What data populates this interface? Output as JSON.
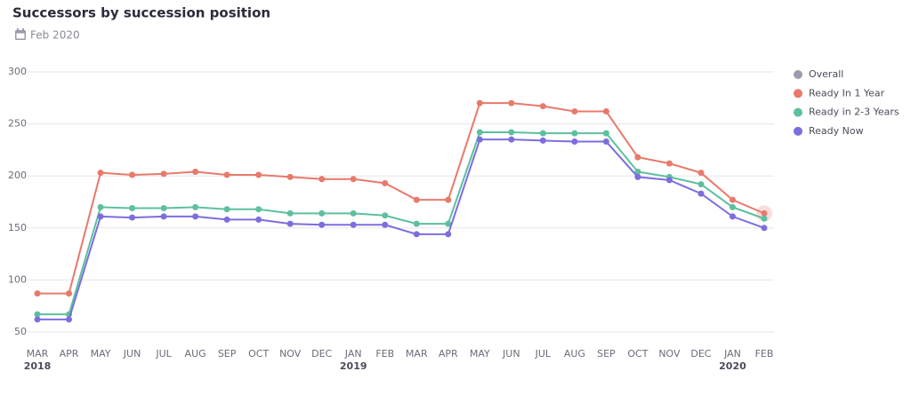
{
  "chart_data": {
    "type": "line",
    "title": "Successors by succession position",
    "subtitle": "Feb 2020",
    "categories": [
      "MAR",
      "APR",
      "MAY",
      "JUN",
      "JUL",
      "AUG",
      "SEP",
      "OCT",
      "NOV",
      "DEC",
      "JAN",
      "FEB",
      "MAR",
      "APR",
      "MAY",
      "JUN",
      "JUL",
      "AUG",
      "SEP",
      "OCT",
      "NOV",
      "DEC",
      "JAN",
      "FEB"
    ],
    "x_year_labels": [
      "2018",
      null,
      null,
      null,
      null,
      null,
      null,
      null,
      null,
      null,
      "2019",
      null,
      null,
      null,
      null,
      null,
      null,
      null,
      null,
      null,
      null,
      null,
      "2020",
      null
    ],
    "series": [
      {
        "name": "Overall",
        "color": "#9e9aab",
        "values": [
          null,
          null,
          null,
          null,
          null,
          null,
          null,
          null,
          null,
          null,
          null,
          null,
          null,
          null,
          null,
          null,
          null,
          null,
          null,
          null,
          null,
          null,
          null,
          null
        ]
      },
      {
        "name": "Ready In 1 Year",
        "color": "#e8796b",
        "values": [
          87,
          87,
          203,
          201,
          202,
          204,
          201,
          201,
          199,
          197,
          197,
          193,
          177,
          177,
          270,
          270,
          267,
          262,
          262,
          218,
          212,
          203,
          177,
          164
        ]
      },
      {
        "name": "Ready in 2-3 Years",
        "color": "#5dbf9f",
        "values": [
          67,
          67,
          170,
          169,
          169,
          170,
          168,
          168,
          164,
          164,
          164,
          162,
          154,
          154,
          242,
          242,
          241,
          241,
          241,
          204,
          199,
          192,
          170,
          159
        ]
      },
      {
        "name": "Ready Now",
        "color": "#7b6ede",
        "values": [
          62,
          62,
          161,
          160,
          161,
          161,
          158,
          158,
          154,
          153,
          153,
          153,
          144,
          144,
          235,
          235,
          234,
          233,
          233,
          199,
          196,
          183,
          161,
          150
        ]
      }
    ],
    "ylim": [
      50,
      300
    ],
    "yticks": [
      50,
      100,
      150,
      200,
      250,
      300
    ],
    "grid": true,
    "legend": "right"
  }
}
